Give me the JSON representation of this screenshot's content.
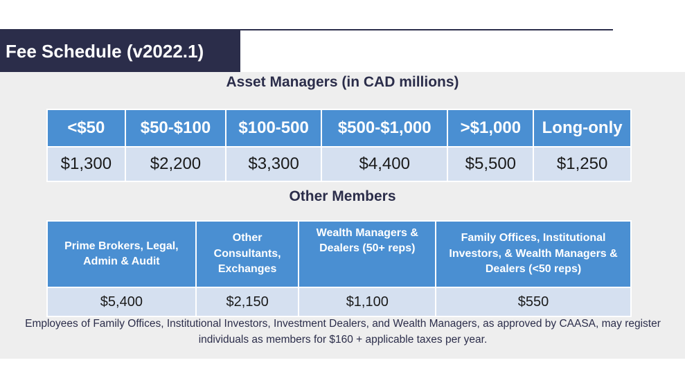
{
  "title": "Fee Schedule (v2022.1)",
  "asset_managers": {
    "heading": "Asset Managers (in CAD millions)",
    "columns": [
      "<$50",
      "$50-$100",
      "$100-500",
      "$500-$1,000",
      ">$1,000",
      "Long-only"
    ],
    "fees": [
      "$1,300",
      "$2,200",
      "$3,300",
      "$4,400",
      "$5,500",
      "$1,250"
    ]
  },
  "other_members": {
    "heading": "Other Members",
    "columns": [
      "Prime Brokers, Legal, Admin & Audit",
      "Other Consultants, Exchanges",
      "Wealth Managers & Dealers (50+ reps)",
      "Family Offices, Institutional Investors, & Wealth Managers & Dealers (<50 reps)"
    ],
    "fees": [
      "$5,400",
      "$2,150",
      "$1,100",
      "$550"
    ]
  },
  "footnote": "Employees of Family Offices, Institutional Investors, Investment Dealers, and Wealth Managers, as approved by CAASA, may register individuals as members for $160 + applicable taxes per year."
}
